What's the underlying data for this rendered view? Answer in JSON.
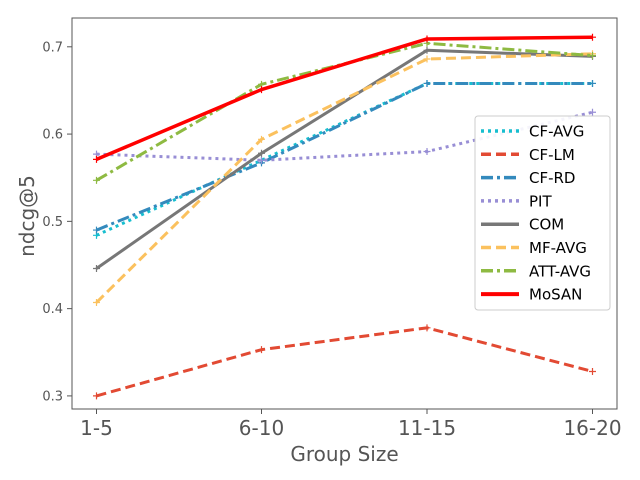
{
  "chart_data": {
    "type": "line",
    "title": "",
    "xlabel": "Group Size",
    "ylabel": "ndcg@5",
    "categories": [
      "1-5",
      "6-10",
      "11-15",
      "16-20"
    ],
    "ylim": [
      0.285,
      0.733
    ],
    "yticks": [
      0.3,
      0.4,
      0.5,
      0.6,
      0.7
    ],
    "ytick_labels": [
      "0.3",
      "0.4",
      "0.5",
      "0.6",
      "0.7"
    ],
    "grid": false,
    "legend_position": "center-right",
    "series": [
      {
        "name": "CF-AVG",
        "values": [
          0.484,
          0.57,
          0.658,
          0.658
        ],
        "color": "#17becf",
        "dash": "dot"
      },
      {
        "name": "CF-LM",
        "values": [
          0.3,
          0.353,
          0.378,
          0.328
        ],
        "color": "#e24a33",
        "dash": "dash"
      },
      {
        "name": "CF-RD",
        "values": [
          0.49,
          0.567,
          0.658,
          0.658
        ],
        "color": "#348abd",
        "dash": "dashdot"
      },
      {
        "name": "PIT",
        "values": [
          0.577,
          0.57,
          0.58,
          0.625
        ],
        "color": "#988ed5",
        "dash": "dot"
      },
      {
        "name": "COM",
        "values": [
          0.446,
          0.578,
          0.696,
          0.689
        ],
        "color": "#777777",
        "dash": "solid"
      },
      {
        "name": "MF-AVG",
        "values": [
          0.407,
          0.594,
          0.686,
          0.692
        ],
        "color": "#fbc15e",
        "dash": "dash"
      },
      {
        "name": "ATT-AVG",
        "values": [
          0.547,
          0.657,
          0.704,
          0.69
        ],
        "color": "#8eba42",
        "dash": "dashdot"
      },
      {
        "name": "MoSAN",
        "values": [
          0.571,
          0.651,
          0.709,
          0.711
        ],
        "color": "#ff0000",
        "dash": "solid"
      }
    ]
  }
}
